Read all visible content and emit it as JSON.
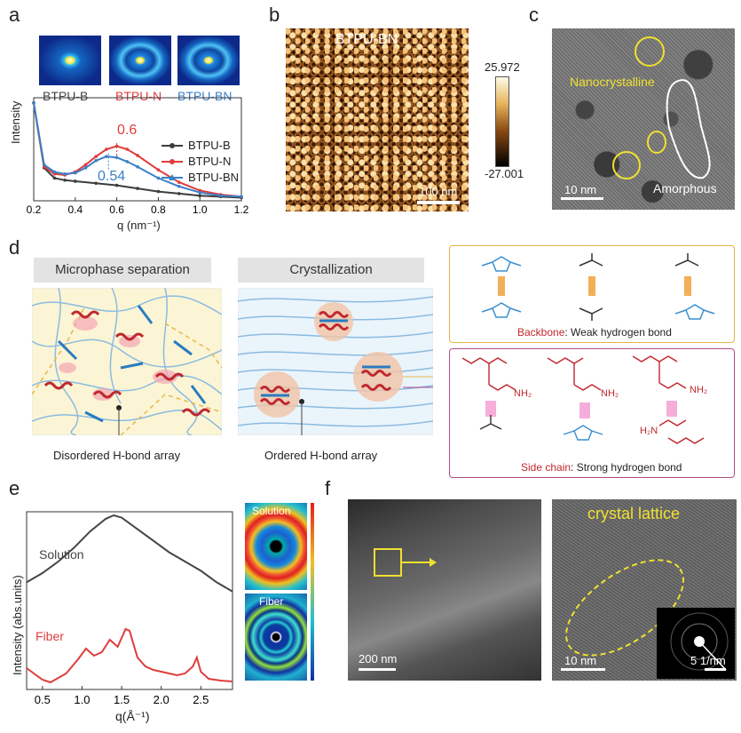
{
  "panels": {
    "a": "a",
    "b": "b",
    "c": "c",
    "d": "d",
    "e": "e",
    "f": "f"
  },
  "panel_a": {
    "insets": [
      "BTPU-B",
      "BTPU-N",
      "BTPU-BN"
    ],
    "peak_n": "0.6",
    "peak_bn": "0.54",
    "ylabel": "Intensity",
    "xlabel": "q (nm⁻¹)",
    "xticks": [
      "0.2",
      "0.4",
      "0.6",
      "0.8",
      "1.0",
      "1.2"
    ],
    "legend": [
      "BTPU-B",
      "BTPU-N",
      "BTPU-BN"
    ],
    "colors": {
      "B": "#3d3d3d",
      "N": "#e03c3c",
      "BN": "#3a80c8"
    }
  },
  "panel_b": {
    "title": "BTPU-BN",
    "scale_max": "25.972",
    "scale_min": "-27.001",
    "scalebar": "100 nm"
  },
  "panel_c": {
    "label_nano": "Nanocrystalline",
    "label_amorph": "Amorphous",
    "scalebar": "10 nm"
  },
  "panel_d": {
    "hdr_micro": "Microphase separation",
    "hdr_cryst": "Crystallization",
    "caption_disordered": "Disordered H-bond array",
    "caption_ordered": "Ordered H-bond array",
    "backbone_bold": "Backbone",
    "backbone_rest": ": Weak hydrogen bond",
    "side_bold": "Side chain",
    "side_rest": ": Strong hydrogen bond",
    "nh2": "NH₂",
    "h2n": "H₂N"
  },
  "panel_e": {
    "ylabel": "Intensity (abs.units)",
    "xlabel": "q(Å⁻¹)",
    "xticks": [
      "0.5",
      "1.0",
      "1.5",
      "2.0",
      "2.5"
    ],
    "solution": "Solution",
    "fiber": "Fiber",
    "inset_solution": "Solution",
    "inset_fiber": "Fiber"
  },
  "panel_f": {
    "scalebar1": "200 nm",
    "lattice": "crystal lattice",
    "scalebar2": "10 nm",
    "scalebar3": "5 1/nm"
  },
  "chart_data": [
    {
      "type": "line",
      "xlabel": "q (nm⁻¹)",
      "ylabel": "Intensity",
      "xlim": [
        0.2,
        1.2
      ],
      "series": [
        {
          "name": "BTPU-B",
          "x": [
            0.2,
            0.25,
            0.3,
            0.35,
            0.4,
            0.5,
            0.6,
            0.7,
            0.8,
            0.9,
            1.0,
            1.1,
            1.2
          ],
          "y": [
            0.95,
            0.32,
            0.22,
            0.2,
            0.19,
            0.17,
            0.15,
            0.12,
            0.09,
            0.07,
            0.05,
            0.04,
            0.03
          ]
        },
        {
          "name": "BTPU-N",
          "x": [
            0.2,
            0.25,
            0.3,
            0.35,
            0.4,
            0.45,
            0.5,
            0.55,
            0.6,
            0.65,
            0.7,
            0.8,
            0.9,
            1.0,
            1.1,
            1.2
          ],
          "y": [
            0.95,
            0.33,
            0.26,
            0.25,
            0.28,
            0.35,
            0.43,
            0.5,
            0.53,
            0.5,
            0.44,
            0.3,
            0.18,
            0.1,
            0.06,
            0.04
          ]
        },
        {
          "name": "BTPU-BN",
          "x": [
            0.2,
            0.25,
            0.3,
            0.35,
            0.4,
            0.45,
            0.5,
            0.55,
            0.6,
            0.65,
            0.7,
            0.8,
            0.9,
            1.0,
            1.1,
            1.2
          ],
          "y": [
            0.95,
            0.35,
            0.28,
            0.26,
            0.27,
            0.32,
            0.39,
            0.43,
            0.42,
            0.38,
            0.33,
            0.22,
            0.14,
            0.08,
            0.05,
            0.04
          ]
        }
      ]
    },
    {
      "type": "line",
      "xlabel": "q(Å⁻¹)",
      "ylabel": "Intensity (abs.units)",
      "xlim": [
        0.3,
        2.9
      ],
      "series": [
        {
          "name": "Solution",
          "x": [
            0.3,
            0.5,
            0.7,
            0.9,
            1.1,
            1.3,
            1.4,
            1.5,
            1.7,
            1.9,
            2.1,
            2.3,
            2.5,
            2.7,
            2.9
          ],
          "y": [
            0.42,
            0.5,
            0.6,
            0.72,
            0.86,
            0.97,
            1.0,
            0.98,
            0.88,
            0.78,
            0.68,
            0.6,
            0.52,
            0.42,
            0.34
          ]
        },
        {
          "name": "Fiber",
          "x": [
            0.3,
            0.5,
            0.6,
            0.8,
            0.95,
            1.05,
            1.15,
            1.25,
            1.35,
            1.45,
            1.55,
            1.6,
            1.7,
            1.8,
            1.9,
            2.0,
            2.1,
            2.2,
            2.3,
            2.4,
            2.45,
            2.5,
            2.6,
            2.75,
            2.9
          ],
          "y": [
            0.18,
            0.05,
            0.02,
            0.12,
            0.28,
            0.4,
            0.32,
            0.36,
            0.5,
            0.42,
            0.62,
            0.6,
            0.3,
            0.2,
            0.16,
            0.14,
            0.12,
            0.1,
            0.12,
            0.2,
            0.3,
            0.14,
            0.06,
            0.04,
            0.03
          ]
        }
      ]
    }
  ]
}
